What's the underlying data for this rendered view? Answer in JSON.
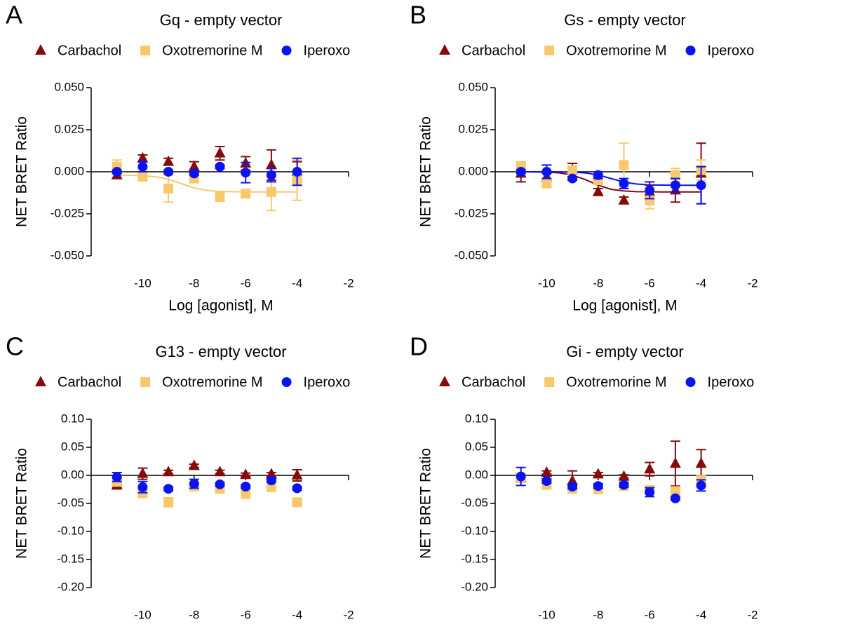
{
  "chart_data": [
    {
      "type": "scatter",
      "panel": "A",
      "title": "Gq - empty vector",
      "xlabel": "Log [agonist], M",
      "ylabel": "NET BRET Ratio",
      "x": [
        -11,
        -10,
        -9,
        -8,
        -7,
        -6,
        -5,
        -4
      ],
      "xlim": [
        -12,
        -2
      ],
      "xticks": [
        -10,
        -8,
        -6,
        -4,
        -2
      ],
      "ylim": [
        -0.05,
        0.05
      ],
      "yticks": [
        {
          "value": -0.05,
          "label": "-0.050"
        },
        {
          "value": -0.025,
          "label": "-0.025"
        },
        {
          "value": 0,
          "label": "0.000"
        },
        {
          "value": 0.025,
          "label": "0.025"
        },
        {
          "value": 0.05,
          "label": "0.050"
        }
      ],
      "series": [
        {
          "name": "Carbachol",
          "color": "#850a0a",
          "marker": "triangle",
          "values": [
            -0.002,
            0.008,
            0.006,
            0.003,
            0.011,
            0.005,
            0.004,
            0.0
          ],
          "errors": [
            0.002,
            0.002,
            0.002,
            0.003,
            0.004,
            0.004,
            0.009,
            0.006
          ]
        },
        {
          "name": "Oxotremorine M",
          "color": "#f9c86b",
          "marker": "square",
          "values": [
            0.003,
            -0.003,
            -0.01,
            -0.004,
            -0.015,
            -0.013,
            -0.012,
            -0.005
          ],
          "errors": [
            0.004,
            0.002,
            0.008,
            0.002,
            0.002,
            0.002,
            0.011,
            0.012
          ],
          "fit": {
            "x": [
              -11,
              -10.5,
              -10,
              -9.5,
              -9,
              -8.5,
              -8,
              -7.5,
              -7,
              -6.5,
              -6,
              -5.5,
              -5,
              -4.5,
              -4
            ],
            "values": [
              -0.002,
              -0.0021,
              -0.0023,
              -0.0029,
              -0.0044,
              -0.007,
              -0.0096,
              -0.0111,
              -0.0117,
              -0.0119,
              -0.012,
              -0.012,
              -0.012,
              -0.012,
              -0.012
            ]
          }
        },
        {
          "name": "Iperoxo",
          "color": "#0a14f0",
          "marker": "circle",
          "values": [
            0.0,
            0.003,
            0.0,
            -0.001,
            0.003,
            -0.0005,
            -0.002,
            0.0
          ],
          "errors": [
            0.001,
            0.003,
            0.001,
            0.001,
            0.001,
            0.006,
            0.004,
            0.008
          ]
        }
      ]
    },
    {
      "type": "scatter",
      "panel": "B",
      "title": "Gs - empty vector",
      "xlabel": "Log [agonist], M",
      "ylabel": "NET BRET Ratio",
      "x": [
        -11,
        -10,
        -9,
        -8,
        -7,
        -6,
        -5,
        -4
      ],
      "xlim": [
        -12,
        -2
      ],
      "xticks": [
        -10,
        -8,
        -6,
        -4,
        -2
      ],
      "ylim": [
        -0.05,
        0.05
      ],
      "yticks": [
        {
          "value": -0.05,
          "label": "-0.050"
        },
        {
          "value": -0.025,
          "label": "-0.025"
        },
        {
          "value": 0,
          "label": "0.000"
        },
        {
          "value": 0.025,
          "label": "0.025"
        },
        {
          "value": 0.05,
          "label": "0.050"
        }
      ],
      "series": [
        {
          "name": "Carbachol",
          "color": "#850a0a",
          "marker": "triangle",
          "values": [
            -0.001,
            -0.003,
            0.001,
            -0.012,
            -0.017,
            -0.012,
            -0.011,
            -0.001
          ],
          "errors": [
            0.005,
            0.002,
            0.004,
            0.002,
            0.002,
            0.004,
            0.007,
            0.018
          ],
          "fit": {
            "x": [
              -11,
              -10.5,
              -10,
              -9.5,
              -9,
              -8.5,
              -8,
              -7.5,
              -7,
              -6.5,
              -6,
              -5.5,
              -5,
              -4.5,
              -4
            ],
            "values": [
              0.0,
              -0.0001,
              -0.0002,
              -0.0007,
              -0.002,
              -0.0046,
              -0.008,
              -0.0104,
              -0.0114,
              -0.0118,
              -0.0119,
              -0.012,
              -0.012,
              -0.012,
              -0.012
            ]
          }
        },
        {
          "name": "Oxotremorine M",
          "color": "#f9c86b",
          "marker": "square",
          "values": [
            0.003,
            -0.007,
            0.001,
            -0.005,
            0.004,
            -0.017,
            -0.002,
            0.001
          ],
          "errors": [
            0.003,
            0.002,
            0.002,
            0.002,
            0.013,
            0.005,
            0.004,
            0.006
          ]
        },
        {
          "name": "Iperoxo",
          "color": "#0a14f0",
          "marker": "circle",
          "values": [
            0.0,
            0.0,
            -0.004,
            -0.002,
            -0.007,
            -0.011,
            -0.008,
            -0.008
          ],
          "errors": [
            0.001,
            0.004,
            0.001,
            0.002,
            0.003,
            0.005,
            0.004,
            0.011
          ],
          "fit": {
            "x": [
              -11,
              -10.5,
              -10,
              -9.5,
              -9,
              -8.5,
              -8,
              -7.5,
              -7,
              -6.5,
              -6,
              -5.5,
              -5,
              -4.5,
              -4
            ],
            "values": [
              0.0,
              0.0,
              0.0,
              -0.0001,
              -0.0002,
              -0.0007,
              -0.0019,
              -0.004,
              -0.0061,
              -0.0073,
              -0.0078,
              -0.0079,
              -0.008,
              -0.008,
              -0.008
            ]
          }
        }
      ]
    },
    {
      "type": "scatter",
      "panel": "C",
      "title": "G13 - empty vector",
      "xlabel": "Log [agonist], M",
      "ylabel": "NET BRET Ratio",
      "x": [
        -11,
        -10,
        -9,
        -8,
        -7,
        -6,
        -5,
        -4
      ],
      "xlim": [
        -12,
        -2
      ],
      "xticks": [
        -10,
        -8,
        -6,
        -4,
        -2
      ],
      "ylim": [
        -0.2,
        0.1
      ],
      "yticks": [
        {
          "value": -0.2,
          "label": "-0.20"
        },
        {
          "value": -0.15,
          "label": "-0.15"
        },
        {
          "value": -0.1,
          "label": "-0.10"
        },
        {
          "value": -0.05,
          "label": "-0.05"
        },
        {
          "value": 0,
          "label": "0.00"
        },
        {
          "value": 0.05,
          "label": "0.05"
        },
        {
          "value": 0.1,
          "label": "0.10"
        }
      ],
      "series": [
        {
          "name": "Carbachol",
          "color": "#850a0a",
          "marker": "triangle",
          "values": [
            -0.018,
            0.003,
            0.006,
            0.017,
            0.006,
            0.001,
            0.002,
            0.0
          ],
          "errors": [
            0.003,
            0.01,
            0.003,
            0.003,
            0.003,
            0.003,
            0.003,
            0.01
          ]
        },
        {
          "name": "Oxotremorine M",
          "color": "#f9c86b",
          "marker": "square",
          "values": [
            -0.011,
            -0.032,
            -0.048,
            -0.02,
            -0.024,
            -0.031,
            -0.021,
            -0.048
          ],
          "errors": [
            0.008,
            0.004,
            0.008,
            0.004,
            0.004,
            0.01,
            0.004,
            0.004
          ]
        },
        {
          "name": "Iperoxo",
          "color": "#0a14f0",
          "marker": "circle",
          "values": [
            -0.003,
            -0.021,
            -0.024,
            -0.015,
            -0.016,
            -0.02,
            -0.009,
            -0.023
          ],
          "errors": [
            0.008,
            0.01,
            0.003,
            0.008,
            0.003,
            0.003,
            0.003,
            0.003
          ]
        }
      ]
    },
    {
      "type": "scatter",
      "panel": "D",
      "title": "Gi - empty vector",
      "xlabel": "Log [agonist], M",
      "ylabel": "NET BRET Ratio",
      "x": [
        -11,
        -10,
        -9,
        -8,
        -7,
        -6,
        -5,
        -4
      ],
      "xlim": [
        -12,
        -2
      ],
      "xticks": [
        -10,
        -8,
        -6,
        -4,
        -2
      ],
      "ylim": [
        -0.2,
        0.1
      ],
      "yticks": [
        {
          "value": -0.2,
          "label": "-0.20"
        },
        {
          "value": -0.15,
          "label": "-0.15"
        },
        {
          "value": -0.1,
          "label": "-0.10"
        },
        {
          "value": -0.05,
          "label": "-0.05"
        },
        {
          "value": 0,
          "label": "0.00"
        },
        {
          "value": 0.05,
          "label": "0.05"
        },
        {
          "value": 0.1,
          "label": "0.10"
        }
      ],
      "series": [
        {
          "name": "Carbachol",
          "color": "#850a0a",
          "marker": "triangle",
          "values": [
            -0.004,
            0.005,
            -0.01,
            0.002,
            -0.002,
            0.011,
            0.021,
            0.021
          ],
          "errors": [
            0.006,
            0.003,
            0.018,
            0.003,
            0.003,
            0.012,
            0.04,
            0.025
          ]
        },
        {
          "name": "Oxotremorine M",
          "color": "#f9c86b",
          "marker": "square",
          "values": [
            -0.005,
            -0.017,
            -0.024,
            -0.025,
            -0.019,
            -0.026,
            -0.028,
            -0.008
          ],
          "errors": [
            0.004,
            0.004,
            0.004,
            0.004,
            0.004,
            0.006,
            0.004,
            0.004
          ]
        },
        {
          "name": "Iperoxo",
          "color": "#0a14f0",
          "marker": "circle",
          "values": [
            -0.002,
            -0.01,
            -0.02,
            -0.019,
            -0.017,
            -0.03,
            -0.041,
            -0.018
          ],
          "errors": [
            0.016,
            0.004,
            0.004,
            0.004,
            0.004,
            0.008,
            0.003,
            0.01
          ]
        }
      ]
    }
  ]
}
